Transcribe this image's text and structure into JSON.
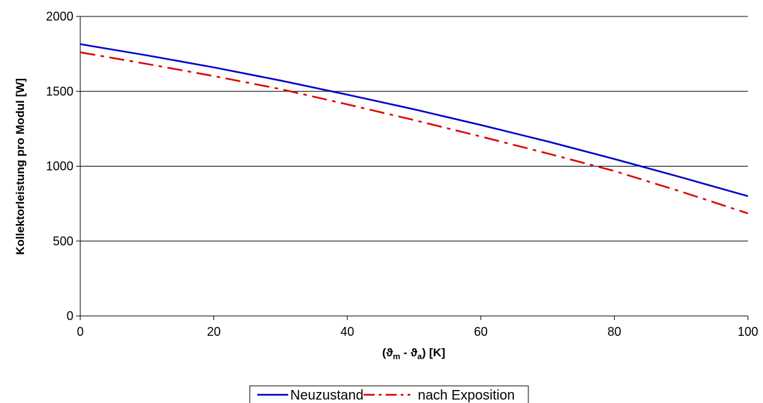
{
  "chart_data": {
    "type": "line",
    "xlabel": {
      "open": "(",
      "sym1": "ϑ",
      "sub1": "m",
      "mid": " - ",
      "sym2": "ϑ",
      "sub2": "a",
      "close": ") [K]"
    },
    "ylabel": "Kollektorleistung pro Modul [W]",
    "xlim": [
      0,
      100
    ],
    "ylim": [
      0,
      2000
    ],
    "x_ticks": [
      "0",
      "20",
      "40",
      "60",
      "80",
      "100"
    ],
    "y_ticks": [
      "0",
      "500",
      "1000",
      "1500",
      "2000"
    ],
    "grid": "horizontal",
    "legend_position": "bottom",
    "series": [
      {
        "name": "Neuzustand",
        "color": "#0000cc",
        "style": "solid",
        "x": [
          0,
          10,
          20,
          30,
          40,
          50,
          60,
          70,
          80,
          90,
          100
        ],
        "y": [
          1815,
          1740,
          1660,
          1572,
          1478,
          1380,
          1275,
          1165,
          1048,
          926,
          800
        ]
      },
      {
        "name": "nach Exposition",
        "color": "#dd0000",
        "style": "dashdot",
        "x": [
          0,
          10,
          20,
          30,
          40,
          50,
          60,
          70,
          80,
          90,
          100
        ],
        "y": [
          1760,
          1683,
          1602,
          1515,
          1413,
          1308,
          1198,
          1085,
          968,
          830,
          685
        ]
      }
    ]
  }
}
